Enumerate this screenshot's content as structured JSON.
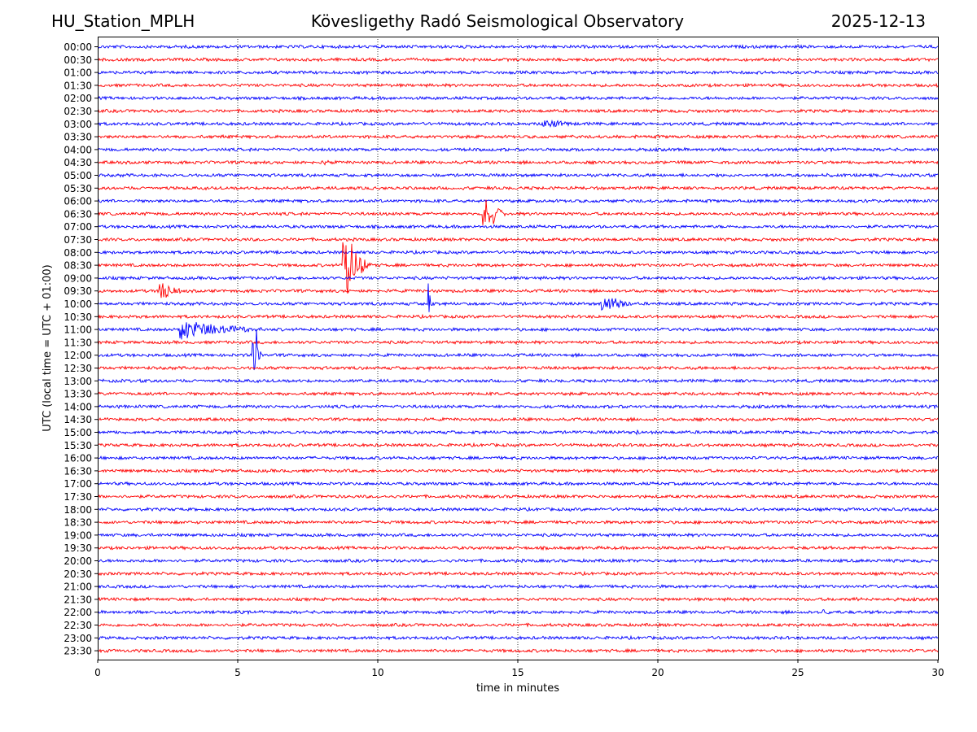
{
  "header": {
    "station": "HU_Station_MPLH",
    "observatory": "Kövesligethy Radó Seismological Observatory",
    "date": "2025-12-13"
  },
  "colors": {
    "even_trace": "#0000ff",
    "odd_trace": "#ff0000",
    "axis": "#000000",
    "grid": "#000000"
  },
  "chart_data": {
    "type": "line",
    "title": "Kövesligethy Radó Seismological Observatory",
    "xlabel": "time in minutes",
    "ylabel": "UTC (local time = UTC + 01:00)",
    "xlim": [
      0,
      30
    ],
    "x_ticks": [
      0,
      5,
      10,
      15,
      20,
      25,
      30
    ],
    "grid": "vertical dotted lines at x ticks",
    "row_labels": [
      "00:00",
      "00:30",
      "01:00",
      "01:30",
      "02:00",
      "02:30",
      "03:00",
      "03:30",
      "04:00",
      "04:30",
      "05:00",
      "05:30",
      "06:00",
      "06:30",
      "07:00",
      "07:30",
      "08:00",
      "08:30",
      "09:00",
      "09:30",
      "10:00",
      "10:30",
      "11:00",
      "11:30",
      "12:00",
      "12:30",
      "13:00",
      "13:30",
      "14:00",
      "14:30",
      "15:00",
      "15:30",
      "16:00",
      "16:30",
      "17:00",
      "17:30",
      "18:00",
      "18:30",
      "19:00",
      "19:30",
      "20:00",
      "20:30",
      "21:00",
      "21:30",
      "22:00",
      "22:30",
      "23:00",
      "23:30"
    ],
    "events": [
      {
        "row": "03:00",
        "t_start": 15.9,
        "duration": 1.4,
        "amplitude": 0.35
      },
      {
        "row": "04:30",
        "t_start": 8.1,
        "duration": 0.3,
        "amplitude": 0.2
      },
      {
        "row": "06:30",
        "t_start": 13.75,
        "duration": 0.9,
        "amplitude": 1.9
      },
      {
        "row": "08:30",
        "t_start": 8.75,
        "duration": 1.1,
        "amplitude": 3.4
      },
      {
        "row": "09:30",
        "t_start": 2.2,
        "duration": 0.9,
        "amplitude": 1.0
      },
      {
        "row": "10:00",
        "t_start": 11.8,
        "duration": 0.15,
        "amplitude": 3.0
      },
      {
        "row": "10:00",
        "t_start": 17.95,
        "duration": 1.3,
        "amplitude": 0.9
      },
      {
        "row": "11:00",
        "t_start": 2.9,
        "duration": 3.3,
        "amplitude": 0.9
      },
      {
        "row": "12:00",
        "t_start": 5.5,
        "duration": 0.4,
        "amplitude": 2.4
      },
      {
        "row": "12:00",
        "t_start": 5.65,
        "duration": 0.05,
        "amplitude": 4.5
      },
      {
        "row": "15:00",
        "t_start": 19.1,
        "duration": 0.5,
        "amplitude": 0.2
      },
      {
        "row": "22:00",
        "t_start": 25.9,
        "duration": 0.3,
        "amplitude": 0.15
      },
      {
        "row": "21:30",
        "t_start": 27.0,
        "duration": 0.3,
        "amplitude": 0.15
      }
    ]
  }
}
